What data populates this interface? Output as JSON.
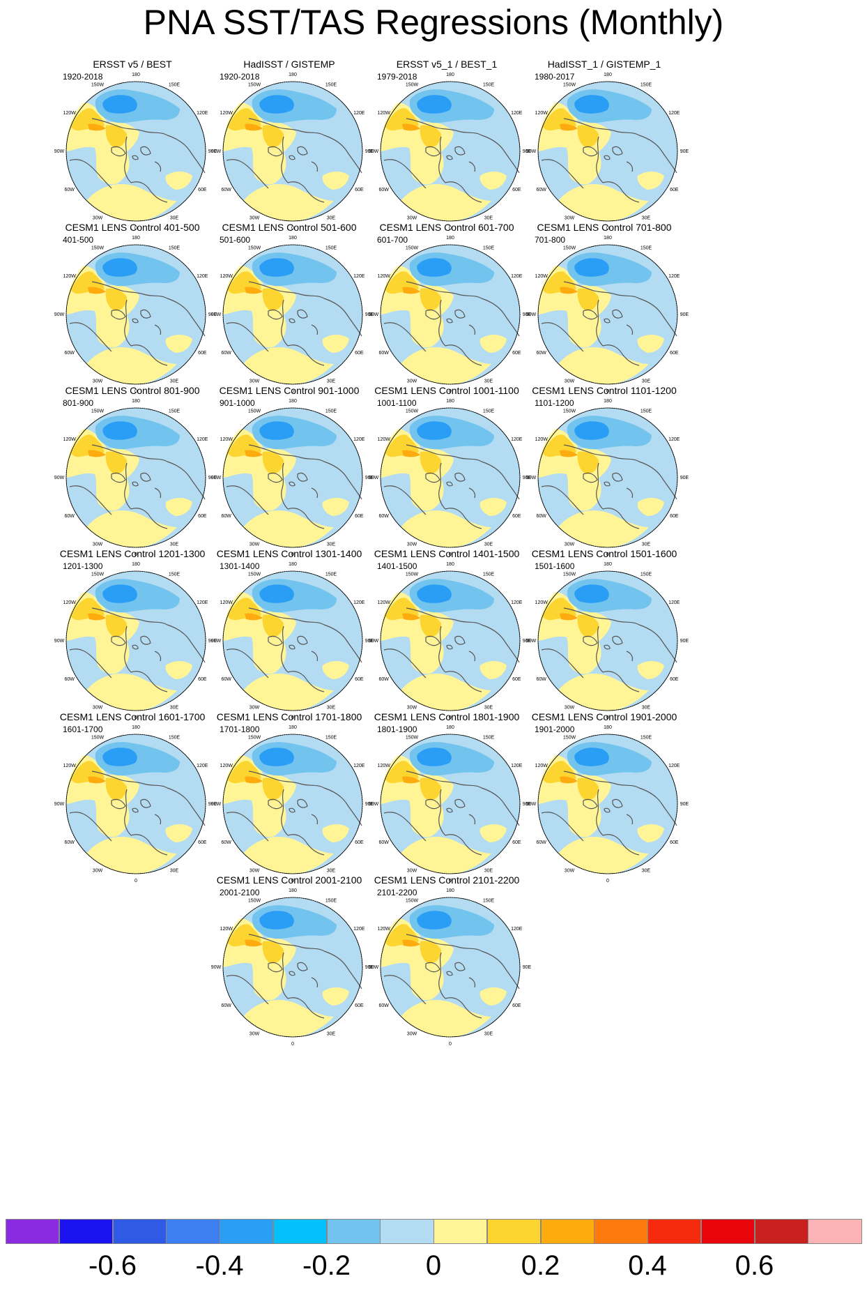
{
  "title": "PNA SST/TAS Regressions (Monthly)",
  "longitude_labels": [
    "180",
    "150E",
    "120E",
    "90E",
    "60E",
    "30E",
    "0",
    "30W",
    "60W",
    "90W",
    "120W",
    "150W"
  ],
  "panels": [
    {
      "title": "ERSST v5 / BEST",
      "period": "1920-2018"
    },
    {
      "title": "HadISST / GISTEMP",
      "period": "1920-2018"
    },
    {
      "title": "ERSST v5_1 / BEST_1",
      "period": "1979-2018"
    },
    {
      "title": "HadISST_1 / GISTEMP_1",
      "period": "1980-2017"
    },
    {
      "title": "CESM1 LENS Control 401-500",
      "period": "401-500"
    },
    {
      "title": "CESM1 LENS Control 501-600",
      "period": "501-600"
    },
    {
      "title": "CESM1 LENS Control 601-700",
      "period": "601-700"
    },
    {
      "title": "CESM1 LENS Control 701-800",
      "period": "701-800"
    },
    {
      "title": "CESM1 LENS Control 801-900",
      "period": "801-900"
    },
    {
      "title": "CESM1 LENS Control 901-1000",
      "period": "901-1000"
    },
    {
      "title": "CESM1 LENS Control 1001-1100",
      "period": "1001-1100"
    },
    {
      "title": "CESM1 LENS Control 1101-1200",
      "period": "1101-1200"
    },
    {
      "title": "CESM1 LENS Control 1201-1300",
      "period": "1201-1300"
    },
    {
      "title": "CESM1 LENS Control 1301-1400",
      "period": "1301-1400"
    },
    {
      "title": "CESM1 LENS Control 1401-1500",
      "period": "1401-1500"
    },
    {
      "title": "CESM1 LENS Control 1501-1600",
      "period": "1501-1600"
    },
    {
      "title": "CESM1 LENS Control 1601-1700",
      "period": "1601-1700"
    },
    {
      "title": "CESM1 LENS Control 1701-1800",
      "period": "1701-1800"
    },
    {
      "title": "CESM1 LENS Control 1801-1900",
      "period": "1801-1900"
    },
    {
      "title": "CESM1 LENS Control 1901-2000",
      "period": "1901-2000"
    },
    {
      "title": "CESM1 LENS Control 2001-2100",
      "period": "2001-2100"
    },
    {
      "title": "CESM1 LENS Control 2101-2200",
      "period": "2101-2200"
    }
  ],
  "colorbar": {
    "colors": [
      "#8a2be2",
      "#1b14f0",
      "#2e5ae6",
      "#3d7ef0",
      "#2a9df5",
      "#05c1fb",
      "#72c4ee",
      "#b3dcf2",
      "#fff597",
      "#fdd530",
      "#fdab0f",
      "#fd7a0c",
      "#f62a0d",
      "#e8050b",
      "#c9211e",
      "#fcb3b5"
    ],
    "labels": [
      "-0.6",
      "-0.4",
      "-0.2",
      "0",
      "0.2",
      "0.4",
      "0.6"
    ]
  }
}
